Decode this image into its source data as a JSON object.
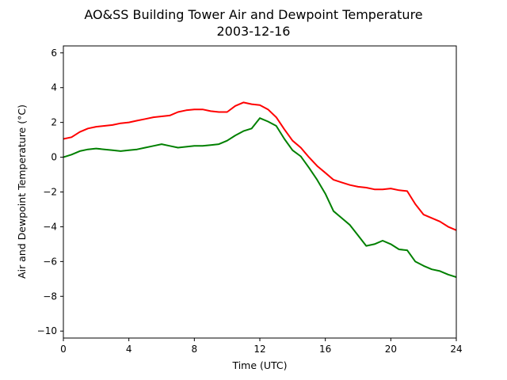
{
  "chart_data": {
    "type": "line",
    "title": "AO&SS Building Tower Air and Dewpoint Temperature",
    "subtitle": "2003-12-16",
    "xlabel": "Time (UTC)",
    "ylabel": "Air and Dewpoint Temperature (°C)",
    "xlim": [
      0,
      24
    ],
    "ylim": [
      -10.4,
      6.4
    ],
    "xticks": [
      0,
      4,
      8,
      12,
      16,
      20,
      24
    ],
    "yticks": [
      -10,
      -8,
      -6,
      -4,
      -2,
      0,
      2,
      4,
      6
    ],
    "grid": false,
    "series": [
      {
        "color": "#ff0000",
        "x": [
          0,
          0.5,
          1,
          1.5,
          2,
          2.5,
          3,
          3.5,
          4,
          4.5,
          5,
          5.5,
          6,
          6.5,
          7,
          7.5,
          8,
          8.5,
          9,
          9.5,
          10,
          10.5,
          11,
          11.5,
          12,
          12.5,
          13,
          13.5,
          14,
          14.5,
          15,
          15.5,
          16,
          16.5,
          17,
          17.5,
          18,
          18.5,
          19,
          19.5,
          20,
          20.5,
          21,
          21.5,
          22,
          22.5,
          23,
          23.5,
          24
        ],
        "values": [
          1.05,
          1.15,
          1.45,
          1.65,
          1.75,
          1.8,
          1.85,
          1.95,
          2.0,
          2.1,
          2.2,
          2.3,
          2.35,
          2.4,
          2.6,
          2.7,
          2.75,
          2.75,
          2.65,
          2.6,
          2.6,
          2.95,
          3.15,
          3.05,
          3.0,
          2.75,
          2.3,
          1.6,
          0.95,
          0.55,
          0.0,
          -0.5,
          -0.9,
          -1.3,
          -1.45,
          -1.6,
          -1.7,
          -1.75,
          -1.85,
          -1.85,
          -1.8,
          -1.9,
          -1.95,
          -2.7,
          -3.3,
          -3.5,
          -3.7,
          -4.0,
          -4.2
        ]
      },
      {
        "color": "#008000",
        "x": [
          0,
          0.5,
          1,
          1.5,
          2,
          2.5,
          3,
          3.5,
          4,
          4.5,
          5,
          5.5,
          6,
          6.5,
          7,
          7.5,
          8,
          8.5,
          9,
          9.5,
          10,
          10.5,
          11,
          11.5,
          12,
          12.5,
          13,
          13.5,
          14,
          14.5,
          15,
          15.5,
          16,
          16.5,
          17,
          17.5,
          18,
          18.5,
          19,
          19.5,
          20,
          20.5,
          21,
          21.5,
          22,
          22.5,
          23,
          23.5,
          24
        ],
        "values": [
          0.0,
          0.15,
          0.35,
          0.45,
          0.5,
          0.45,
          0.4,
          0.35,
          0.4,
          0.45,
          0.55,
          0.65,
          0.75,
          0.65,
          0.55,
          0.6,
          0.65,
          0.65,
          0.7,
          0.75,
          0.95,
          1.25,
          1.5,
          1.65,
          2.25,
          2.05,
          1.8,
          1.05,
          0.4,
          0.05,
          -0.6,
          -1.3,
          -2.1,
          -3.1,
          -3.5,
          -3.9,
          -4.5,
          -5.1,
          -5.0,
          -4.8,
          -5.0,
          -5.3,
          -5.35,
          -6.0,
          -6.25,
          -6.45,
          -6.55,
          -6.75,
          -6.9
        ]
      }
    ]
  }
}
